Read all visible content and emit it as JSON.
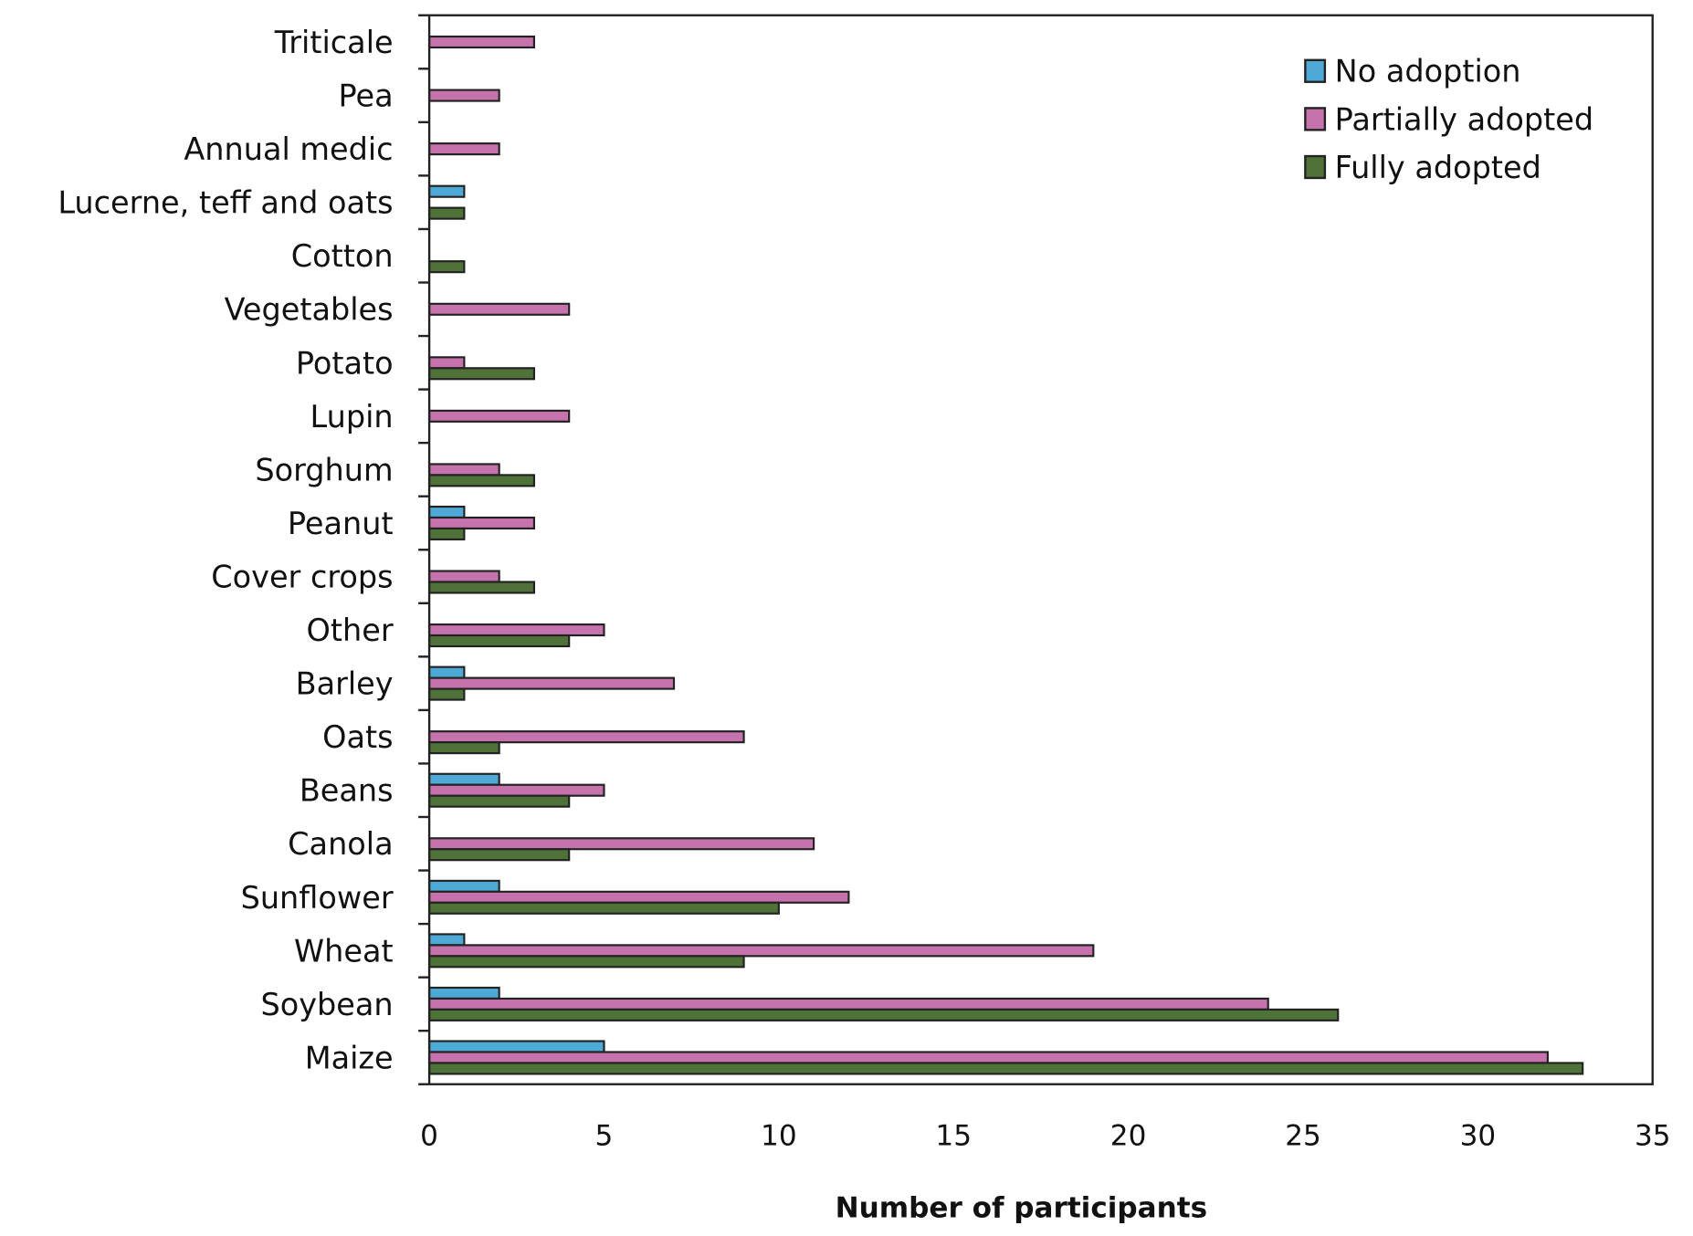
{
  "chart_data": {
    "type": "bar",
    "orientation": "horizontal",
    "title": "",
    "xlabel": "Number of participants",
    "ylabel": "",
    "xlim": [
      0,
      35
    ],
    "xticks": [
      "0",
      "5",
      "10",
      "15",
      "20",
      "25",
      "30",
      "35"
    ],
    "grid": false,
    "legend_position": "top-right",
    "categories": [
      "Triticale",
      "Pea",
      "Annual medic",
      "Lucerne, teff and oats",
      "Cotton",
      "Vegetables",
      "Potato",
      "Lupin",
      "Sorghum",
      "Peanut",
      "Cover crops",
      "Other",
      "Barley",
      "Oats",
      "Beans",
      "Canola",
      "Sunflower",
      "Wheat",
      "Soybean",
      "Maize"
    ],
    "series": [
      {
        "name": "No adoption",
        "color": "#4fa9d6",
        "values": [
          0,
          0,
          0,
          1,
          0,
          0,
          0,
          0,
          0,
          1,
          0,
          0,
          1,
          0,
          2,
          0,
          2,
          1,
          2,
          5
        ]
      },
      {
        "name": "Partially adopted",
        "color": "#c672ac",
        "values": [
          3,
          2,
          2,
          0,
          0,
          4,
          1,
          4,
          2,
          3,
          2,
          5,
          7,
          9,
          5,
          11,
          12,
          19,
          24,
          32
        ]
      },
      {
        "name": "Fully adopted",
        "color": "#4e7238",
        "values": [
          0,
          0,
          0,
          1,
          1,
          0,
          3,
          0,
          3,
          1,
          3,
          4,
          1,
          2,
          4,
          4,
          10,
          9,
          26,
          33
        ]
      }
    ]
  }
}
